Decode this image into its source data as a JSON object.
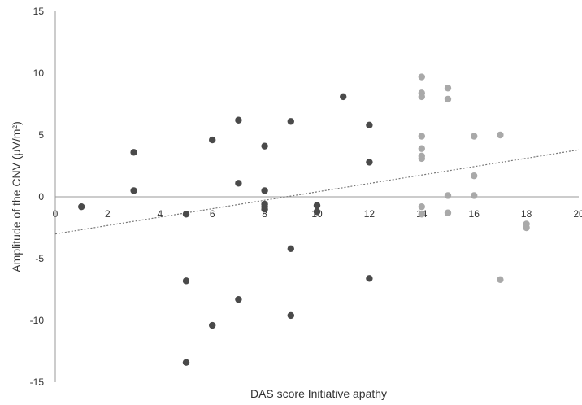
{
  "chart_data": {
    "type": "scatter",
    "title": "",
    "xlabel": "DAS score Initiative apathy",
    "ylabel": "Amplitude of the CNV (μV/m²)",
    "xlim": [
      0,
      20
    ],
    "ylim": [
      -15,
      15
    ],
    "x_ticks": [
      0,
      2,
      4,
      6,
      8,
      10,
      12,
      14,
      16,
      18,
      20
    ],
    "y_ticks": [
      -15,
      -10,
      -5,
      0,
      5,
      10,
      15
    ],
    "x_tick_labels": [
      "0",
      "2",
      "4",
      "6",
      "8",
      "10",
      "12",
      "14",
      "16",
      "18",
      "20"
    ],
    "y_tick_labels": [
      "-15",
      "-10",
      "-5",
      "0",
      "5",
      "10",
      "15"
    ],
    "grid": false,
    "legend": "none",
    "series": [
      {
        "color": "#4a4a4a",
        "points": [
          [
            1,
            -0.8
          ],
          [
            3,
            0.5
          ],
          [
            3,
            3.6
          ],
          [
            5,
            -1.4
          ],
          [
            5,
            -6.8
          ],
          [
            5,
            -13.4
          ],
          [
            6,
            4.6
          ],
          [
            6,
            -10.4
          ],
          [
            7,
            6.2
          ],
          [
            7,
            1.1
          ],
          [
            7,
            -8.3
          ],
          [
            8,
            4.1
          ],
          [
            8,
            0.5
          ],
          [
            8,
            -0.6
          ],
          [
            8,
            -0.8
          ],
          [
            8,
            -1.0
          ],
          [
            9,
            6.1
          ],
          [
            9,
            -4.2
          ],
          [
            9,
            -9.6
          ],
          [
            10,
            -0.7
          ],
          [
            10,
            -1.2
          ],
          [
            11,
            8.1
          ],
          [
            12,
            5.8
          ],
          [
            12,
            2.8
          ],
          [
            12,
            -6.6
          ]
        ]
      },
      {
        "color": "#a9a9a9",
        "points": [
          [
            14,
            9.7
          ],
          [
            14,
            8.4
          ],
          [
            14,
            8.1
          ],
          [
            14,
            4.9
          ],
          [
            14,
            3.9
          ],
          [
            14,
            3.3
          ],
          [
            14,
            3.1
          ],
          [
            14,
            -0.8
          ],
          [
            14,
            -1.4
          ],
          [
            15,
            8.8
          ],
          [
            15,
            7.9
          ],
          [
            15,
            0.1
          ],
          [
            15,
            -1.3
          ],
          [
            16,
            4.9
          ],
          [
            16,
            1.7
          ],
          [
            16,
            0.1
          ],
          [
            17,
            5.0
          ],
          [
            17,
            -6.7
          ],
          [
            18,
            -2.2
          ],
          [
            18,
            -2.5
          ]
        ]
      }
    ],
    "trendline": {
      "style": "dotted",
      "color": "#777777",
      "x": [
        0,
        20
      ],
      "y": [
        -3.0,
        3.8
      ]
    },
    "colors": {
      "axis": "#999999",
      "text": "#333333"
    }
  }
}
